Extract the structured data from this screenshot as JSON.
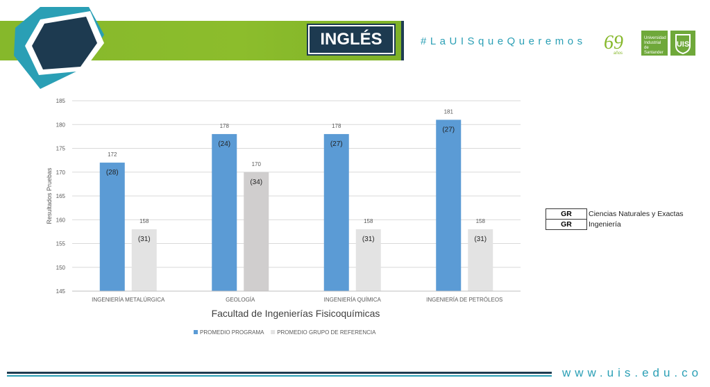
{
  "header": {
    "subject": "INGLÉS",
    "hashtag": "#LaUISqueQueremos",
    "logo_years_text": "69 años",
    "logo_uis_text": "Universidad Industrial de Santander"
  },
  "footer": {
    "url": "www.uis.edu.co"
  },
  "legend_table": {
    "rows": [
      {
        "tag": "GR",
        "label": "Ciencias Naturales y Exactas"
      },
      {
        "tag": "GR",
        "label": "Ingeniería"
      }
    ]
  },
  "colors": {
    "programa": "#5b9bd5",
    "referencia_light": "#e3e3e3",
    "referencia_dark": "#d0cece",
    "header_green": "#8cbd2c",
    "navy": "#1d3a50",
    "teal": "#2a9fb5"
  },
  "chart_data": {
    "type": "bar",
    "title": "",
    "xlabel": "Facultad de Ingenierías Fisicoquímicas",
    "ylabel": "Resultados Pruebas",
    "ylim": [
      145,
      185
    ],
    "yticks": [
      145,
      150,
      155,
      160,
      165,
      170,
      175,
      180,
      185
    ],
    "grid": true,
    "legend_position": "bottom",
    "categories": [
      "INGENIERÍA METALÚRGICA",
      "GEOLOGÍA",
      "INGENIERÍA QUÍMICA",
      "INGENIERÍA DE PETRÓLEOS"
    ],
    "series": [
      {
        "name": "PROMEDIO PROGRAMA",
        "values": [
          172,
          178,
          178,
          181
        ],
        "annotations": [
          "(28)",
          "(24)",
          "(27)",
          "(27)"
        ]
      },
      {
        "name": "PROMEDIO GRUPO DE REFERENCIA",
        "values": [
          158,
          170,
          158,
          158
        ],
        "annotations": [
          "(31)",
          "(34)",
          "(31)",
          "(31)"
        ]
      }
    ]
  }
}
